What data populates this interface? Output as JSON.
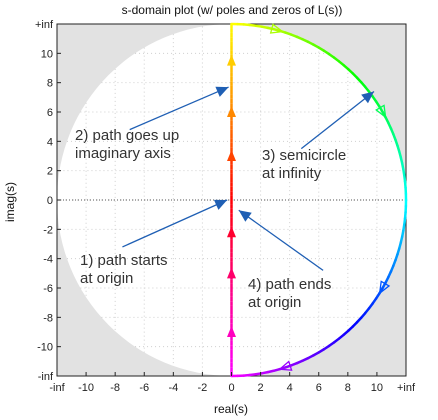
{
  "chart_data": {
    "type": "line",
    "title": "s-domain plot (w/ poles and zeros of L(s))",
    "xlabel": "real(s)",
    "ylabel": "imag(s)",
    "xlim": [
      -12,
      12
    ],
    "ylim": [
      -12,
      12
    ],
    "x_ticks": [
      "-inf",
      "-10",
      "-8",
      "-6",
      "-4",
      "-2",
      "0",
      "2",
      "4",
      "6",
      "8",
      "10",
      "+inf"
    ],
    "y_ticks": [
      "+inf",
      "10",
      "8",
      "6",
      "4",
      "2",
      "0",
      "-2",
      "-4",
      "-6",
      "-8",
      "-10",
      "-inf"
    ],
    "grid": true,
    "legend": "none",
    "colors": {
      "outside_region": "#e2e2e2",
      "inside_region": "#ffffff",
      "annotation_arrow": "#1f5fb4",
      "annotation_text": "#333333"
    },
    "series": [
      {
        "segment": "imaginary-axis",
        "x": [
          0,
          0
        ],
        "y": [
          0,
          12
        ],
        "colors": [
          "#ff0000",
          "#ff8800",
          "#ffff00"
        ]
      },
      {
        "segment": "semicircle",
        "theta_deg": [
          90,
          -90
        ],
        "colors": [
          "#ffff00",
          "#00ff00",
          "#00ffff",
          "#0000ff",
          "#ff00ff"
        ]
      },
      {
        "segment": "negative-imaginary-axis",
        "x": [
          0,
          0
        ],
        "y": [
          -12,
          0
        ],
        "colors": [
          "#ff00ff",
          "#ff0000"
        ]
      }
    ],
    "direction_markers": {
      "axis_y": [
        -9,
        -5,
        -2.2,
        3,
        6,
        9.5
      ],
      "arc_theta_deg": [
        75,
        30,
        -30,
        -72
      ]
    },
    "annotations": [
      {
        "text": [
          "1) path starts",
          "at origin"
        ],
        "tip": [
          -0.3,
          0
        ],
        "tail": [
          -7.5,
          -3.2
        ]
      },
      {
        "text": [
          "2) path goes up",
          "imaginary axis"
        ],
        "tip": [
          -0.2,
          7.7
        ],
        "tail": [
          -7,
          4.8
        ]
      },
      {
        "text": [
          "3) semicircle",
          "at infinity"
        ],
        "tip": [
          9.8,
          7.4
        ],
        "tail": [
          4.8,
          3.5
        ]
      },
      {
        "text": [
          "4) path ends",
          "at origin"
        ],
        "tip": [
          0.5,
          -0.7
        ],
        "tail": [
          6.3,
          -4.8
        ]
      }
    ]
  }
}
